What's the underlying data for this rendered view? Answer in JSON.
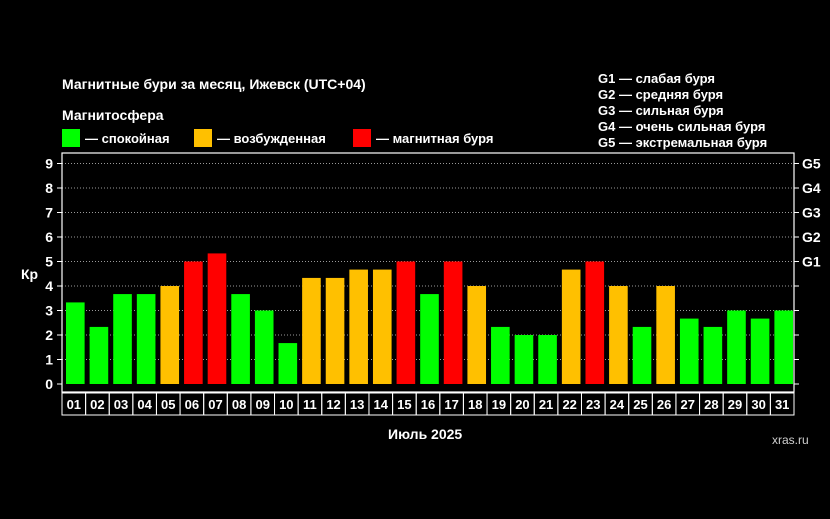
{
  "header": {
    "title": "Магнитные бури за месяц, Ижевск (UTC+04)",
    "magnetosphere_label": "Магнитосфера"
  },
  "legend": [
    {
      "label": "— спокойная",
      "color": "#00ff00"
    },
    {
      "label": "— возбужденная",
      "color": "#ffc000"
    },
    {
      "label": "— магнитная буря",
      "color": "#ff0000"
    }
  ],
  "storm_levels": [
    "G1 — слабая буря",
    "G2 — средняя буря",
    "G3 — сильная буря",
    "G4 — очень сильная буря",
    "G5 — экстремальная буря"
  ],
  "footer": {
    "month": "Июль 2025",
    "site": "xras.ru"
  },
  "chart_data": {
    "type": "bar",
    "ylabel": "Кр",
    "ylim": [
      0,
      9
    ],
    "yticks": [
      "0",
      "1",
      "2",
      "3",
      "4",
      "5",
      "6",
      "7",
      "8",
      "9"
    ],
    "right_ticks": [
      {
        "label": "G1",
        "value": 5
      },
      {
        "label": "G2",
        "value": 6
      },
      {
        "label": "G3",
        "value": 7
      },
      {
        "label": "G4",
        "value": 8
      },
      {
        "label": "G5",
        "value": 9
      }
    ],
    "grid": "dotted horizontal",
    "categories": [
      "01",
      "02",
      "03",
      "04",
      "05",
      "06",
      "07",
      "08",
      "09",
      "10",
      "11",
      "12",
      "13",
      "14",
      "15",
      "16",
      "17",
      "18",
      "19",
      "20",
      "21",
      "22",
      "23",
      "24",
      "25",
      "26",
      "27",
      "28",
      "29",
      "30",
      "31"
    ],
    "values": [
      3.33,
      2.33,
      3.67,
      3.67,
      4.0,
      5.0,
      5.33,
      3.67,
      3.0,
      1.67,
      4.33,
      4.33,
      4.67,
      4.67,
      5.0,
      3.67,
      5.0,
      4.0,
      2.33,
      2.0,
      2.0,
      4.67,
      5.0,
      4.0,
      2.33,
      4.0,
      2.67,
      2.33,
      3.0,
      2.67,
      3.0
    ],
    "colors": {
      "quiet": "#00ff00",
      "active": "#ffc000",
      "storm": "#ff0000"
    }
  }
}
